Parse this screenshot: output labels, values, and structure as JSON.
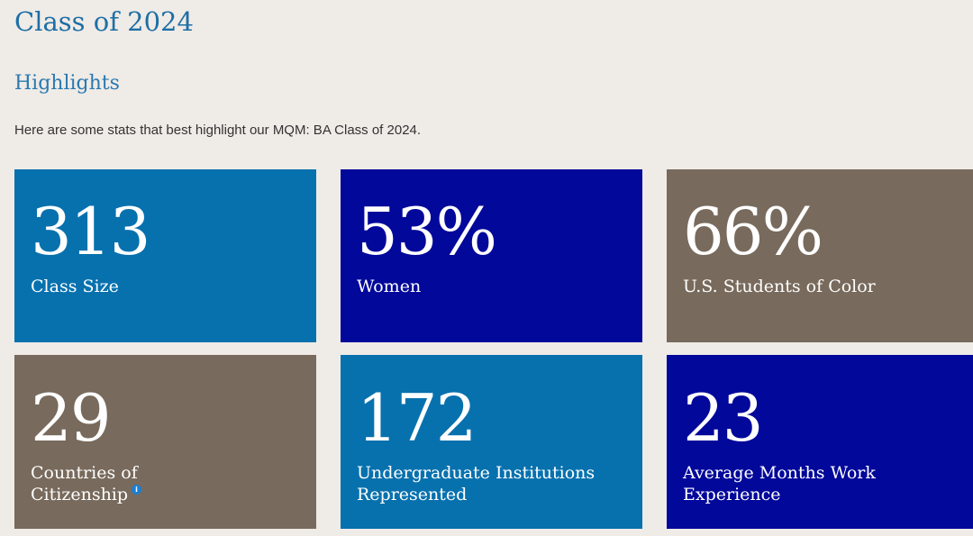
{
  "page": {
    "title": "Class of 2024",
    "section_title": "Highlights",
    "intro": "Here are some stats that best highlight our MQM: BA Class of 2024."
  },
  "stats": [
    {
      "value": "313",
      "label": "Class Size",
      "color": "#0771ae"
    },
    {
      "value": "53%",
      "label": "Women",
      "color": "#02089a"
    },
    {
      "value": "66%",
      "label": "U.S. Students of Color",
      "color": "#786a5c"
    },
    {
      "value": "29",
      "label": "Countries of Citizenship",
      "color": "#786a5c",
      "has_info_icon": true,
      "info_icon_glyph": "i"
    },
    {
      "value": "172",
      "label": "Undergraduate Institutions Represented",
      "color": "#0771ae"
    },
    {
      "value": "23",
      "label": "Average Months Work Experience",
      "color": "#02089a"
    }
  ],
  "icons": {
    "info": "info-icon"
  }
}
